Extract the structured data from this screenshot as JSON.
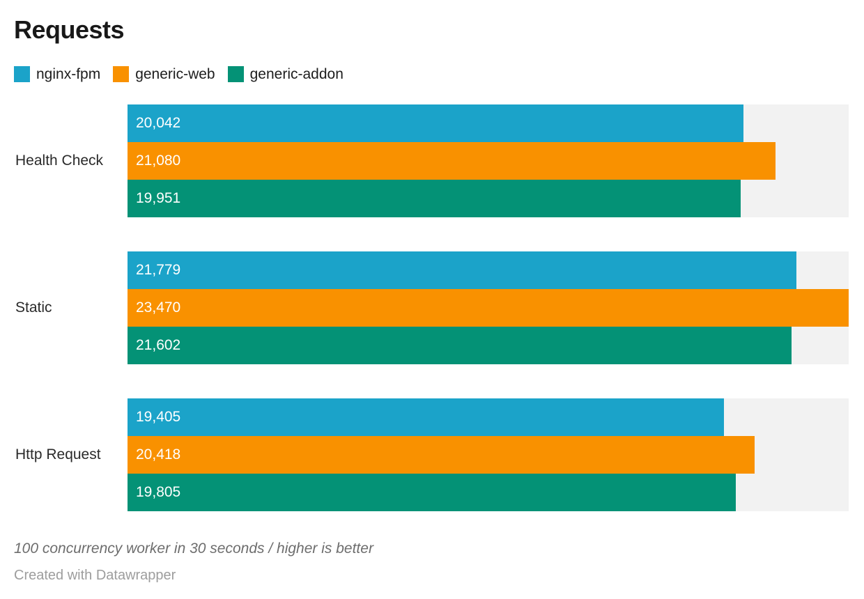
{
  "title": "Requests",
  "legend": [
    {
      "label": "nginx-fpm",
      "color": "#1ba3c9"
    },
    {
      "label": "generic-web",
      "color": "#f99100"
    },
    {
      "label": "generic-addon",
      "color": "#049276"
    }
  ],
  "chart_data": {
    "type": "bar",
    "orientation": "horizontal",
    "title": "Requests",
    "categories": [
      "Health Check",
      "Static",
      "Http Request"
    ],
    "series": [
      {
        "name": "nginx-fpm",
        "color": "#1ba3c9",
        "values": [
          20042,
          21779,
          19405
        ],
        "labels": [
          "20,042",
          "21,779",
          "19,405"
        ]
      },
      {
        "name": "generic-web",
        "color": "#f99100",
        "values": [
          21080,
          23470,
          20418
        ],
        "labels": [
          "21,080",
          "23,470",
          "20,418"
        ]
      },
      {
        "name": "generic-addon",
        "color": "#049276",
        "values": [
          19951,
          21602,
          19805
        ],
        "labels": [
          "19,951",
          "21,602",
          "19,805"
        ]
      }
    ],
    "axis": {
      "min": 0,
      "max": 23470
    },
    "grid": false,
    "legend_position": "top",
    "track_color": "#f2f2f2",
    "value_label_color": "#ffffff",
    "value_labels_inside_bars": true
  },
  "footer": {
    "note": "100 concurrency worker in 30 seconds / higher is better",
    "attribution": "Created with Datawrapper"
  }
}
